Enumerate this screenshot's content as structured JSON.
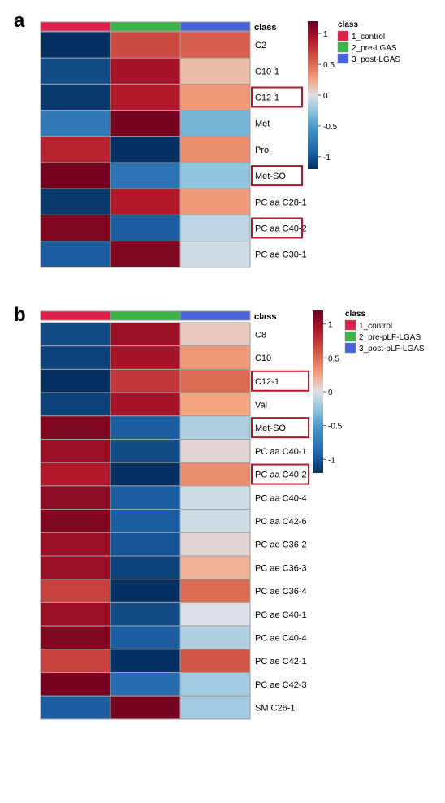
{
  "chart_data": [
    {
      "type": "heatmap",
      "panel_label": "a",
      "class_header": "class",
      "columns": [
        "1_control",
        "2_pre-LGAS",
        "3_post-LGAS"
      ],
      "column_colors": [
        "#dc1f4b",
        "#3eb24a",
        "#4a63d6"
      ],
      "legend_title": "class",
      "colorbar_ticks": [
        "1",
        "0.5",
        "0",
        "-0.5",
        "-1"
      ],
      "colorbar_range": [
        -1.2,
        1.2
      ],
      "rows": [
        "C2",
        "C10-1",
        "C12-1",
        "Met",
        "Pro",
        "Met-SO",
        "PC aa C28-1",
        "PC aa C40-2",
        "PC ae C30-1"
      ],
      "highlighted_rows": [
        "C12-1",
        "Met-SO",
        "PC aa C40-2"
      ],
      "values": [
        [
          -1.2,
          0.65,
          0.55
        ],
        [
          -1.05,
          0.95,
          0.15
        ],
        [
          -1.15,
          0.9,
          0.3
        ],
        [
          -0.75,
          1.15,
          -0.35
        ],
        [
          0.85,
          -1.2,
          0.35
        ],
        [
          1.15,
          -0.8,
          -0.25
        ],
        [
          -1.15,
          0.9,
          0.3
        ],
        [
          1.1,
          -0.95,
          -0.1
        ],
        [
          -0.95,
          1.1,
          -0.05
        ]
      ]
    },
    {
      "type": "heatmap",
      "panel_label": "b",
      "class_header": "class",
      "columns": [
        "1_control",
        "2_pre-pLF-LGAS",
        "3_post-pLF-LGAS"
      ],
      "column_colors": [
        "#dc1f4b",
        "#3eb24a",
        "#4a63d6"
      ],
      "legend_title": "class",
      "colorbar_ticks": [
        "1",
        "0.5",
        "0",
        "-0.5",
        "-1"
      ],
      "colorbar_range": [
        -1.2,
        1.2
      ],
      "rows": [
        "C8",
        "C10",
        "C12-1",
        "Val",
        "Met-SO",
        "PC aa C40-1",
        "PC aa C40-2",
        "PC aa C40-4",
        "PC aa C42-6",
        "PC ae C36-2",
        "PC ae C36-3",
        "PC ae C36-4",
        "PC ae C40-1",
        "PC ae C40-4",
        "PC ae C42-1",
        "PC ae C42-3",
        "SM C26-1"
      ],
      "highlighted_rows": [
        "C12-1",
        "Met-SO",
        "PC aa C40-2"
      ],
      "values": [
        [
          -1.05,
          1.0,
          0.1
        ],
        [
          -1.1,
          0.95,
          0.3
        ],
        [
          -1.2,
          0.75,
          0.5
        ],
        [
          -1.1,
          0.95,
          0.25
        ],
        [
          1.1,
          -0.95,
          -0.15
        ],
        [
          1.0,
          -1.05,
          0.05
        ],
        [
          0.9,
          -1.2,
          0.35
        ],
        [
          1.05,
          -0.95,
          -0.05
        ],
        [
          1.1,
          -0.95,
          -0.05
        ],
        [
          1.0,
          -1.0,
          0.05
        ],
        [
          1.0,
          -1.1,
          0.2
        ],
        [
          0.7,
          -1.25,
          0.5
        ],
        [
          1.0,
          -1.05,
          0.0
        ],
        [
          1.1,
          -0.95,
          -0.15
        ],
        [
          0.7,
          -1.2,
          0.6
        ],
        [
          1.15,
          -0.85,
          -0.2
        ],
        [
          -0.95,
          1.15,
          -0.2
        ]
      ]
    }
  ]
}
